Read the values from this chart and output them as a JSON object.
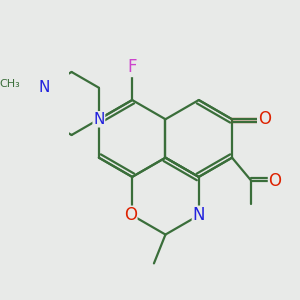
{
  "background_color": "#e8eae8",
  "bond_color": "#3a6e3a",
  "N_color": "#2222dd",
  "O_color": "#dd2200",
  "F_color": "#cc44cc",
  "bond_lw": 1.6,
  "figsize": [
    3.0,
    3.0
  ],
  "dpi": 100,
  "xlim": [
    -2.5,
    3.5
  ],
  "ylim": [
    -2.8,
    3.2
  ]
}
